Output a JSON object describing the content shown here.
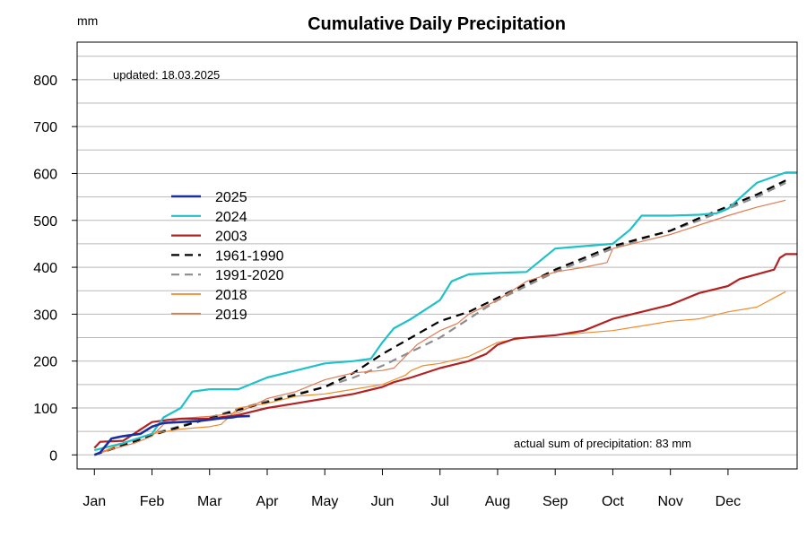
{
  "chart_data": {
    "type": "line",
    "title": "Cumulative Daily Precipitation",
    "ylabel": "mm",
    "updated_note": "updated: 18.03.2025",
    "sum_note": "actual sum of precipitation: 83 mm",
    "ylim": [
      -30,
      880
    ],
    "xlim": [
      -0.3,
      12.2
    ],
    "yticks": [
      0,
      100,
      200,
      300,
      400,
      500,
      600,
      700,
      800
    ],
    "ytick_labels": [
      "0",
      "100",
      "200",
      "300",
      "400",
      "500",
      "600",
      "700",
      "800"
    ],
    "gridlines": [
      0,
      50,
      100,
      150,
      200,
      250,
      300,
      350,
      400,
      450,
      500,
      550,
      600,
      650,
      700,
      750,
      800,
      850
    ],
    "grid": true,
    "legend_position": "upper-left",
    "x_tick_labels": [
      "Jan",
      "Feb",
      "Mar",
      "Apr",
      "May",
      "Jun",
      "Jul",
      "Aug",
      "Sep",
      "Oct",
      "Nov",
      "Dec"
    ],
    "x_tick_positions": [
      0,
      1,
      2,
      3,
      4,
      5,
      6,
      7,
      8,
      9,
      10,
      11
    ],
    "series": [
      {
        "name": "1991-2020",
        "color": "#8c8c8c",
        "dash": "9,6",
        "width": 2.2,
        "points": [
          [
            0,
            0
          ],
          [
            0.5,
            22
          ],
          [
            1,
            45
          ],
          [
            1.5,
            62
          ],
          [
            2,
            80
          ],
          [
            2.5,
            98
          ],
          [
            3,
            115
          ],
          [
            3.5,
            130
          ],
          [
            4,
            145
          ],
          [
            4.5,
            165
          ],
          [
            5,
            190
          ],
          [
            5.5,
            220
          ],
          [
            6,
            250
          ],
          [
            6.5,
            290
          ],
          [
            7,
            330
          ],
          [
            7.5,
            360
          ],
          [
            8,
            390
          ],
          [
            8.5,
            415
          ],
          [
            9,
            440
          ],
          [
            9.5,
            460
          ],
          [
            10,
            478
          ],
          [
            10.5,
            500
          ],
          [
            11,
            525
          ],
          [
            11.5,
            550
          ],
          [
            12,
            580
          ]
        ]
      },
      {
        "name": "1961-1990",
        "color": "#000000",
        "dash": "9,6",
        "width": 2.2,
        "points": [
          [
            0,
            0
          ],
          [
            0.5,
            20
          ],
          [
            1,
            42
          ],
          [
            1.5,
            60
          ],
          [
            2,
            78
          ],
          [
            2.5,
            96
          ],
          [
            3,
            112
          ],
          [
            3.5,
            128
          ],
          [
            4,
            145
          ],
          [
            4.5,
            175
          ],
          [
            5,
            215
          ],
          [
            5.5,
            250
          ],
          [
            6,
            285
          ],
          [
            6.5,
            305
          ],
          [
            7,
            335
          ],
          [
            7.5,
            365
          ],
          [
            8,
            395
          ],
          [
            8.5,
            420
          ],
          [
            9,
            445
          ],
          [
            9.5,
            462
          ],
          [
            10,
            478
          ],
          [
            10.5,
            505
          ],
          [
            11,
            530
          ],
          [
            11.5,
            555
          ],
          [
            12,
            585
          ]
        ]
      },
      {
        "name": "2019",
        "color": "#e07b50",
        "dash": "",
        "width": 1.2,
        "points": [
          [
            0,
            0
          ],
          [
            0.3,
            12
          ],
          [
            0.7,
            25
          ],
          [
            1,
            40
          ],
          [
            1.2,
            65
          ],
          [
            1.5,
            78
          ],
          [
            2,
            82
          ],
          [
            2.5,
            90
          ],
          [
            3,
            120
          ],
          [
            3.5,
            135
          ],
          [
            4,
            160
          ],
          [
            4.5,
            175
          ],
          [
            5,
            180
          ],
          [
            5.2,
            185
          ],
          [
            5.4,
            210
          ],
          [
            5.6,
            235
          ],
          [
            6,
            265
          ],
          [
            6.3,
            280
          ],
          [
            6.5,
            300
          ],
          [
            7,
            330
          ],
          [
            7.5,
            370
          ],
          [
            8,
            390
          ],
          [
            8.5,
            400
          ],
          [
            8.9,
            410
          ],
          [
            9,
            440
          ],
          [
            9.5,
            455
          ],
          [
            10,
            470
          ],
          [
            10.5,
            490
          ],
          [
            11,
            510
          ],
          [
            11.5,
            528
          ],
          [
            12,
            543
          ]
        ]
      },
      {
        "name": "2018",
        "color": "#f08a28",
        "dash": "",
        "width": 1.2,
        "points": [
          [
            0,
            0
          ],
          [
            0.5,
            25
          ],
          [
            1,
            45
          ],
          [
            1.5,
            55
          ],
          [
            2,
            60
          ],
          [
            2.2,
            65
          ],
          [
            2.5,
            100
          ],
          [
            3,
            110
          ],
          [
            3.5,
            125
          ],
          [
            4,
            130
          ],
          [
            4.5,
            140
          ],
          [
            5,
            150
          ],
          [
            5.3,
            165
          ],
          [
            5.4,
            170
          ],
          [
            5.5,
            180
          ],
          [
            5.7,
            190
          ],
          [
            6,
            195
          ],
          [
            6.5,
            210
          ],
          [
            7,
            240
          ],
          [
            7.5,
            250
          ],
          [
            8,
            255
          ],
          [
            8.5,
            260
          ],
          [
            9,
            265
          ],
          [
            9.5,
            275
          ],
          [
            10,
            285
          ],
          [
            10.5,
            290
          ],
          [
            11,
            305
          ],
          [
            11.5,
            315
          ],
          [
            12,
            348
          ]
        ]
      },
      {
        "name": "2003",
        "color": "#b22222",
        "dash": "",
        "width": 2.2,
        "points": [
          [
            0,
            15
          ],
          [
            0.1,
            28
          ],
          [
            0.5,
            30
          ],
          [
            1,
            70
          ],
          [
            1.3,
            75
          ],
          [
            1.5,
            77
          ],
          [
            2,
            77
          ],
          [
            2.5,
            85
          ],
          [
            3,
            100
          ],
          [
            3.5,
            110
          ],
          [
            4,
            120
          ],
          [
            4.5,
            130
          ],
          [
            5,
            145
          ],
          [
            5.2,
            155
          ],
          [
            5.5,
            165
          ],
          [
            6,
            185
          ],
          [
            6.5,
            200
          ],
          [
            6.8,
            215
          ],
          [
            7,
            235
          ],
          [
            7.3,
            248
          ],
          [
            7.5,
            250
          ],
          [
            8,
            255
          ],
          [
            8.5,
            265
          ],
          [
            9,
            290
          ],
          [
            9.5,
            305
          ],
          [
            10,
            320
          ],
          [
            10.5,
            345
          ],
          [
            11,
            360
          ],
          [
            11.2,
            375
          ],
          [
            11.5,
            385
          ],
          [
            11.8,
            395
          ],
          [
            11.9,
            420
          ],
          [
            12,
            428
          ],
          [
            12.2,
            428
          ]
        ]
      },
      {
        "name": "2024",
        "color": "#1fc1c9",
        "dash": "",
        "width": 2.2,
        "points": [
          [
            0,
            10
          ],
          [
            0.5,
            25
          ],
          [
            1,
            45
          ],
          [
            1.2,
            80
          ],
          [
            1.5,
            100
          ],
          [
            1.7,
            135
          ],
          [
            2,
            140
          ],
          [
            2.5,
            140
          ],
          [
            3,
            165
          ],
          [
            3.5,
            180
          ],
          [
            4,
            195
          ],
          [
            4.5,
            200
          ],
          [
            4.8,
            205
          ],
          [
            5,
            240
          ],
          [
            5.2,
            270
          ],
          [
            5.5,
            290
          ],
          [
            6,
            330
          ],
          [
            6.2,
            370
          ],
          [
            6.5,
            385
          ],
          [
            7,
            388
          ],
          [
            7.5,
            390
          ],
          [
            8,
            440
          ],
          [
            8.5,
            445
          ],
          [
            9,
            450
          ],
          [
            9.3,
            480
          ],
          [
            9.5,
            510
          ],
          [
            10,
            510
          ],
          [
            10.5,
            512
          ],
          [
            10.8,
            515
          ],
          [
            11,
            525
          ],
          [
            11.5,
            580
          ],
          [
            12,
            602
          ],
          [
            12.2,
            602
          ]
        ]
      },
      {
        "name": "2025",
        "color": "#1a2fa0",
        "dash": "",
        "width": 2.6,
        "points": [
          [
            0,
            0
          ],
          [
            0.1,
            5
          ],
          [
            0.2,
            20
          ],
          [
            0.3,
            35
          ],
          [
            0.5,
            40
          ],
          [
            0.8,
            45
          ],
          [
            1,
            60
          ],
          [
            1.2,
            68
          ],
          [
            1.5,
            70
          ],
          [
            1.8,
            72
          ],
          [
            2,
            75
          ],
          [
            2.2,
            78
          ],
          [
            2.4,
            80
          ],
          [
            2.5,
            82
          ],
          [
            2.7,
            83
          ]
        ]
      }
    ],
    "legend_order": [
      "2025",
      "2024",
      "2003",
      "1961-1990",
      "1991-2020",
      "2018",
      "2019"
    ]
  }
}
